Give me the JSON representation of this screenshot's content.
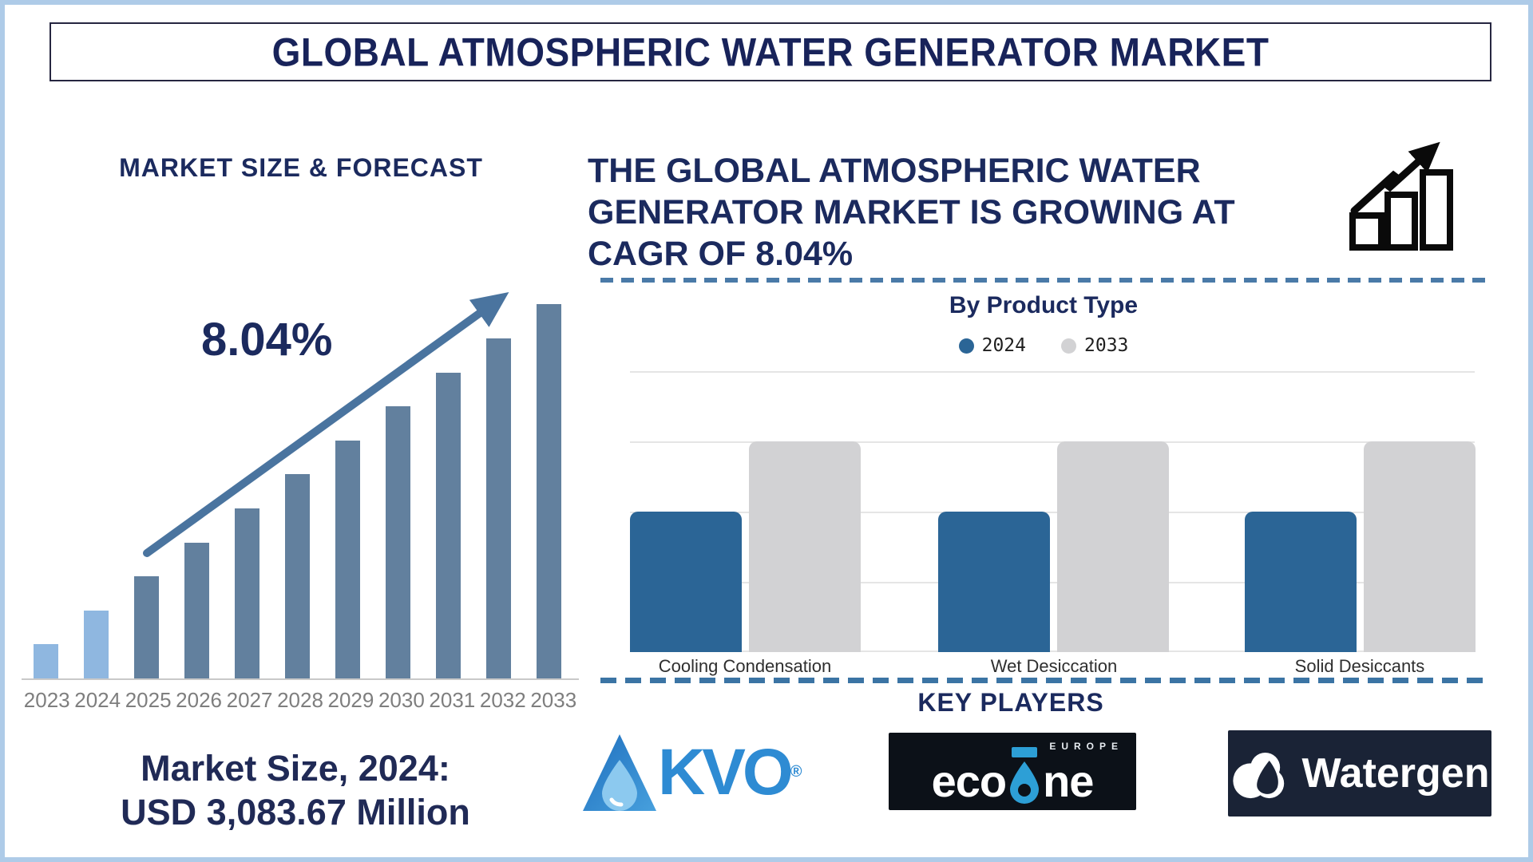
{
  "page": {
    "title": "GLOBAL ATMOSPHERIC WATER GENERATOR MARKET",
    "frame_color": "#aecbe8"
  },
  "left_panel": {
    "heading": "MARKET SIZE & FORECAST",
    "cagr_label": "8.04%",
    "market_size_line1": "Market Size, 2024:",
    "market_size_line2": "USD 3,083.67 Million"
  },
  "right_panel": {
    "heading_lines": [
      "THE GLOBAL ATMOSPHERIC WATER",
      "GENERATOR MARKET IS GROWING AT",
      "CAGR OF 8.04%"
    ],
    "product_chart_title": "By Product Type",
    "key_players_heading": "KEY PLAYERS",
    "logos": {
      "akvo": {
        "text": "KVO",
        "reg": "®"
      },
      "ecoone": {
        "left": "eco",
        "right": "ne",
        "region": "EUROPE"
      },
      "watergen": {
        "text": "Watergen"
      }
    }
  },
  "colors": {
    "navy": "#1b2a5e",
    "dash_top": "#4a7aa8",
    "dash_bottom": "#3b74a4",
    "trend_arrow": "#4a749f",
    "icon_black": "#0a0a0a",
    "akvo_blue": "#2e8bd3",
    "ecoone_blue": "#2d9fd6",
    "watergen_bg": "#1a2336"
  },
  "chart_data": [
    {
      "id": "market-size-forecast",
      "type": "bar",
      "title": "MARKET SIZE & FORECAST",
      "categories": [
        "2023",
        "2024",
        "2025",
        "2026",
        "2027",
        "2028",
        "2029",
        "2030",
        "2031",
        "2032",
        "2033"
      ],
      "values_relative_units": [
        1,
        2,
        3,
        4,
        5,
        6,
        7,
        8,
        9,
        10,
        11
      ],
      "ylim_units": [
        0,
        12
      ],
      "known_value": {
        "year": "2024",
        "label": "USD 3,083.67 Million",
        "value_usd_million": 3083.67
      },
      "cagr_percent": 8.04,
      "annotation": "8.04%",
      "bar_colors": {
        "historical": "#8fb7e0",
        "forecast": "#62809e",
        "historical_count": 2
      },
      "axis_line_color": "#c9c9c9",
      "tick_label_color": "#7e7e7e",
      "grid": false
    },
    {
      "id": "by-product-type",
      "type": "bar",
      "title": "By Product Type",
      "categories": [
        "Cooling Condensation",
        "Wet Desiccation",
        "Solid Desiccants"
      ],
      "series": [
        {
          "name": "2024",
          "color": "#2b6596",
          "values_relative_units": [
            2,
            2,
            2
          ]
        },
        {
          "name": "2033",
          "color": "#d2d2d4",
          "values_relative_units": [
            3,
            3,
            3
          ]
        }
      ],
      "ylim_units": [
        0,
        4
      ],
      "grid": true,
      "gridline_color": "#e5e5e5",
      "legend_position": "top",
      "category_label_color": "#2e2e2e"
    }
  ]
}
